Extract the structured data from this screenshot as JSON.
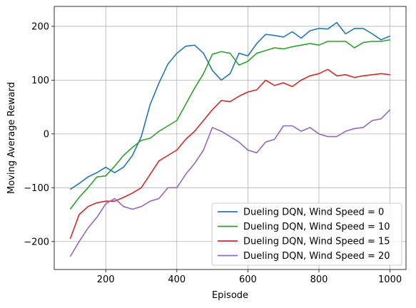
{
  "chart_data": {
    "type": "line",
    "title": "",
    "xlabel": "Episode",
    "ylabel": "Moving Average Reward",
    "xlim": [
      55,
      1045
    ],
    "ylim": [
      -252,
      237
    ],
    "xticks": [
      200,
      400,
      600,
      800,
      1000
    ],
    "yticks": [
      -200,
      -100,
      0,
      100,
      200
    ],
    "xtick_labels": [
      "200",
      "400",
      "600",
      "800",
      "1000"
    ],
    "ytick_labels": [
      "−200",
      "−100",
      "0",
      "100",
      "200"
    ],
    "grid": true,
    "legend_position": "lower-right",
    "x": [
      100,
      125,
      150,
      175,
      200,
      225,
      250,
      275,
      300,
      325,
      350,
      375,
      400,
      425,
      450,
      475,
      500,
      525,
      550,
      575,
      600,
      625,
      650,
      675,
      700,
      725,
      750,
      775,
      800,
      825,
      850,
      875,
      900,
      925,
      950,
      975,
      1000
    ],
    "series": [
      {
        "name": "Dueling DQN, Wind Speed = 0",
        "color": "#1f77b4",
        "values": [
          -103,
          -92,
          -80,
          -72,
          -62,
          -72,
          -62,
          -40,
          -5,
          55,
          95,
          130,
          150,
          163,
          165,
          150,
          118,
          100,
          112,
          150,
          145,
          168,
          185,
          183,
          180,
          190,
          178,
          192,
          196,
          195,
          207,
          186,
          196,
          196,
          186,
          175,
          182
        ]
      },
      {
        "name": "Dueling DQN, Wind Speed = 10",
        "color": "#2ca02c",
        "values": [
          -140,
          -118,
          -100,
          -80,
          -78,
          -60,
          -40,
          -25,
          -12,
          -8,
          5,
          15,
          25,
          55,
          85,
          112,
          148,
          153,
          150,
          128,
          135,
          150,
          155,
          160,
          158,
          162,
          165,
          168,
          165,
          172,
          172,
          172,
          160,
          170,
          172,
          172,
          175
        ]
      },
      {
        "name": "Dueling DQN, Wind Speed = 15",
        "color": "#d62728",
        "values": [
          -195,
          -150,
          -135,
          -128,
          -125,
          -125,
          -118,
          -110,
          -100,
          -75,
          -50,
          -40,
          -30,
          -10,
          5,
          25,
          45,
          62,
          60,
          70,
          78,
          82,
          100,
          90,
          95,
          88,
          100,
          108,
          112,
          120,
          108,
          110,
          105,
          108,
          110,
          112,
          110
        ]
      },
      {
        "name": "Dueling DQN, Wind Speed = 20",
        "color": "#9467bd",
        "values": [
          -228,
          -200,
          -175,
          -155,
          -130,
          -120,
          -135,
          -140,
          -135,
          -125,
          -120,
          -100,
          -100,
          -75,
          -55,
          -30,
          12,
          5,
          -5,
          -15,
          -30,
          -35,
          -15,
          -10,
          15,
          15,
          5,
          12,
          0,
          -5,
          -5,
          5,
          10,
          12,
          25,
          28,
          45
        ]
      }
    ]
  }
}
